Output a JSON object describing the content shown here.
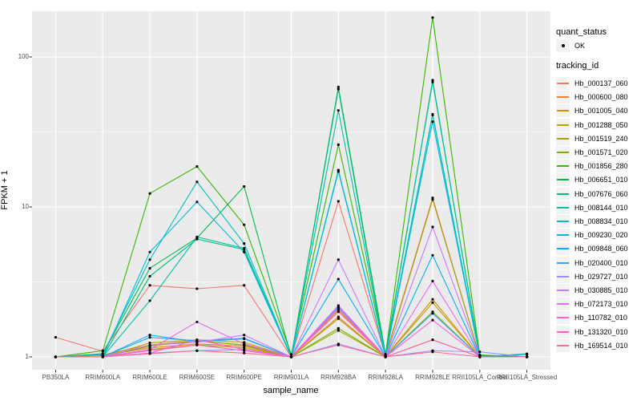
{
  "figure": {
    "background": "#FFFFFF",
    "panel_background": "#EBEBEB",
    "grid_color": "#FFFFFF",
    "point_color": "#000000",
    "tick_color": "#333333",
    "axis_text_color": "#4D4D4D",
    "legend_key_background": "#F2F2F2"
  },
  "axes": {
    "x_title": "sample_name",
    "y_title": "FPKM + 1"
  },
  "legend": {
    "quant_status_title": "quant_status",
    "quant_status_ok_label": "OK",
    "tracking_id_title": "tracking_id"
  },
  "chart_data": {
    "type": "line",
    "xlabel": "sample_name",
    "ylabel": "FPKM + 1",
    "y_scale": "log10",
    "y_ticks": [
      1,
      10,
      100
    ],
    "ylim": [
      0.82,
      210
    ],
    "grid": true,
    "legend_position": "right",
    "point_marker": "filled-circle-black",
    "x_categories": [
      "PB350LA",
      "RRIM600LA",
      "RRIM600LE",
      "RRIM600SE",
      "RRIM600PE",
      "RRIM901LA",
      "RRIM928BA",
      "RRIM928LA",
      "RRIM928LE",
      "RRII105LA_Control",
      "RRII105LA_Stressed"
    ],
    "series": [
      {
        "name": "Hb_000137_060",
        "color": "#F8766D",
        "values": [
          1.35,
          1.09,
          3.0,
          2.85,
          3.0,
          1.0,
          10.9,
          1.02,
          11.5,
          1.0,
          1.0
        ]
      },
      {
        "name": "Hb_000600_080",
        "color": "#EA8331",
        "values": [
          1.0,
          1.02,
          1.15,
          1.22,
          1.18,
          1.0,
          1.85,
          1.0,
          1.3,
          1.0,
          1.0
        ]
      },
      {
        "name": "Hb_001005_040",
        "color": "#D89000",
        "values": [
          1.0,
          1.03,
          1.2,
          1.28,
          1.2,
          1.0,
          2.05,
          1.0,
          2.42,
          1.0,
          1.0
        ]
      },
      {
        "name": "Hb_001288_050",
        "color": "#C09B00",
        "values": [
          1.0,
          1.0,
          1.24,
          1.3,
          1.25,
          1.0,
          1.8,
          1.0,
          2.3,
          1.0,
          1.0
        ]
      },
      {
        "name": "Hb_001519_240",
        "color": "#A3A500",
        "values": [
          1.0,
          1.0,
          1.12,
          1.2,
          1.15,
          1.0,
          1.5,
          1.0,
          11.2,
          1.0,
          1.0
        ]
      },
      {
        "name": "Hb_001571_020",
        "color": "#7CAE00",
        "values": [
          1.0,
          1.0,
          1.18,
          1.28,
          1.2,
          1.0,
          1.55,
          1.0,
          2.0,
          1.0,
          1.0
        ]
      },
      {
        "name": "Hb_001856_280",
        "color": "#39B600",
        "values": [
          1.0,
          1.1,
          12.3,
          18.6,
          7.6,
          1.04,
          26.0,
          1.04,
          183.0,
          1.03,
          1.0
        ]
      },
      {
        "name": "Hb_006651_010",
        "color": "#00BB4E",
        "values": [
          1.0,
          1.05,
          3.9,
          6.2,
          13.7,
          1.0,
          63.0,
          1.04,
          68.0,
          1.02,
          1.0
        ]
      },
      {
        "name": "Hb_007676_060",
        "color": "#00BF7D",
        "values": [
          1.0,
          1.0,
          3.45,
          6.1,
          5.2,
          1.0,
          61.0,
          1.0,
          41.5,
          1.0,
          1.0
        ]
      },
      {
        "name": "Hb_008144_010",
        "color": "#00C1A3",
        "values": [
          1.0,
          1.0,
          2.37,
          6.3,
          5.3,
          1.0,
          44.0,
          1.0,
          70.0,
          1.0,
          1.05
        ]
      },
      {
        "name": "Hb_008834_010",
        "color": "#00BFC4",
        "values": [
          1.0,
          1.04,
          4.45,
          14.7,
          5.7,
          1.0,
          17.6,
          1.0,
          41.0,
          1.0,
          1.04
        ]
      },
      {
        "name": "Hb_009230_020",
        "color": "#00BAE0",
        "values": [
          1.0,
          1.0,
          5.0,
          10.8,
          5.0,
          1.0,
          17.2,
          1.0,
          37.0,
          1.0,
          1.0
        ]
      },
      {
        "name": "Hb_009848_060",
        "color": "#00B0F6",
        "values": [
          1.0,
          1.0,
          1.35,
          1.28,
          1.33,
          1.0,
          3.3,
          1.0,
          4.76,
          1.0,
          1.0
        ]
      },
      {
        "name": "Hb_020400_010",
        "color": "#35A2FF",
        "values": [
          1.0,
          1.0,
          1.4,
          1.26,
          1.32,
          1.0,
          2.15,
          1.0,
          1.95,
          1.0,
          1.0
        ]
      },
      {
        "name": "Hb_029727_010",
        "color": "#9590FF",
        "values": [
          1.0,
          1.0,
          1.06,
          1.1,
          1.12,
          1.0,
          1.22,
          1.0,
          1.1,
          1.08,
          1.0
        ]
      },
      {
        "name": "Hb_030885_010",
        "color": "#C77CFF",
        "values": [
          1.0,
          1.0,
          1.2,
          1.25,
          1.4,
          1.0,
          4.45,
          1.0,
          7.35,
          1.0,
          1.0
        ]
      },
      {
        "name": "Hb_072173_010",
        "color": "#E76BF3",
        "values": [
          1.0,
          1.0,
          1.12,
          1.71,
          1.22,
          1.0,
          2.2,
          1.0,
          3.2,
          1.0,
          1.0
        ]
      },
      {
        "name": "Hb_110782_010",
        "color": "#FA62DB",
        "values": [
          1.0,
          1.0,
          1.06,
          1.3,
          1.12,
          1.0,
          2.1,
          1.0,
          1.76,
          1.0,
          1.0
        ]
      },
      {
        "name": "Hb_131320_010",
        "color": "#FF62BC",
        "values": [
          1.0,
          1.0,
          1.1,
          1.2,
          1.1,
          1.0,
          2.0,
          1.0,
          1.3,
          1.0,
          1.0
        ]
      },
      {
        "name": "Hb_169514_010",
        "color": "#FF6A98",
        "values": [
          1.0,
          1.0,
          1.05,
          1.1,
          1.06,
          1.0,
          1.2,
          1.0,
          1.08,
          1.0,
          1.0
        ]
      }
    ]
  }
}
